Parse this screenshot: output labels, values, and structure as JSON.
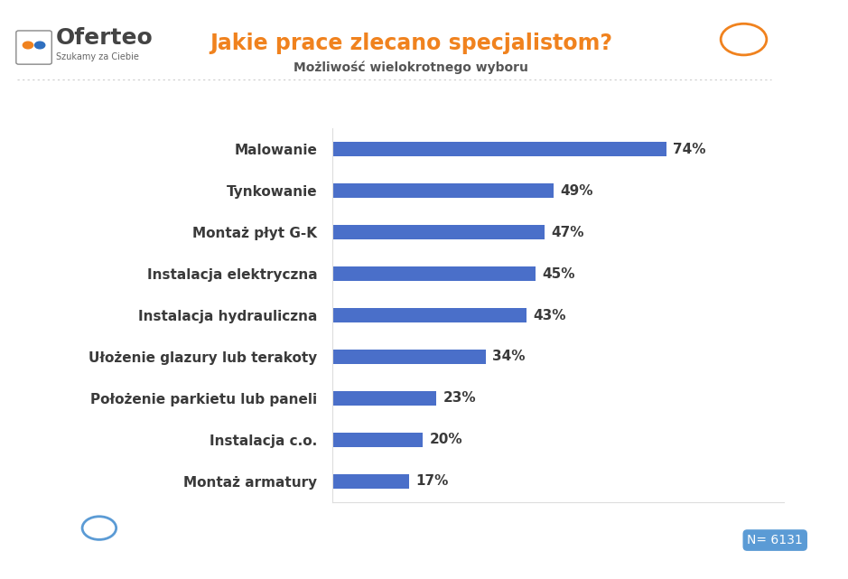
{
  "logo": {
    "name": "Oferteo",
    "tagline": "Szukamy za Ciebie"
  },
  "note": "N= 6131",
  "chart_data": {
    "type": "bar",
    "orientation": "horizontal",
    "title": "Jakie prace zlecano specjalistom?",
    "subtitle": "Możliwość wielokrotnego wyboru",
    "categories": [
      "Malowanie",
      "Tynkowanie",
      "Montaż płyt G-K",
      "Instalacja elektryczna",
      "Instalacja hydrauliczna",
      "Ułożenie glazury lub terakoty",
      "Położenie parkietu lub paneli",
      "Instalacja c.o.",
      "Montaż armatury"
    ],
    "values": [
      74,
      49,
      47,
      45,
      43,
      34,
      23,
      20,
      17
    ],
    "value_labels": [
      "74%",
      "49%",
      "47%",
      "45%",
      "43%",
      "34%",
      "23%",
      "20%",
      "17%"
    ],
    "data_labels": true,
    "tick_labels": "y",
    "color": "#4a6fc9",
    "xlim": [
      0,
      100
    ],
    "grid": false
  }
}
